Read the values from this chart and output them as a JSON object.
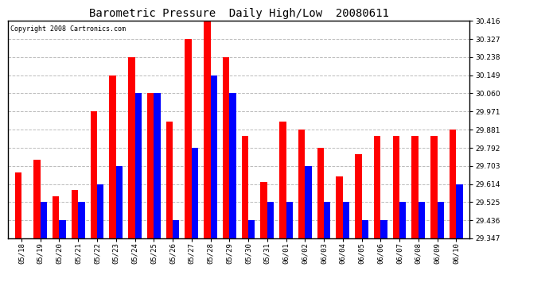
{
  "title": "Barometric Pressure  Daily High/Low  20080611",
  "copyright": "Copyright 2008 Cartronics.com",
  "dates": [
    "05/18",
    "05/19",
    "05/20",
    "05/21",
    "05/22",
    "05/23",
    "05/24",
    "05/25",
    "05/26",
    "05/27",
    "05/28",
    "05/29",
    "05/30",
    "05/31",
    "06/01",
    "06/02",
    "06/03",
    "06/04",
    "06/05",
    "06/06",
    "06/07",
    "06/08",
    "06/09",
    "06/10"
  ],
  "highs": [
    29.673,
    29.733,
    29.554,
    29.584,
    29.97,
    30.149,
    30.238,
    30.06,
    29.921,
    30.327,
    30.416,
    30.238,
    29.851,
    29.624,
    29.921,
    29.881,
    29.792,
    29.653,
    29.762,
    29.851,
    29.851,
    29.851,
    29.851,
    29.881
  ],
  "lows": [
    29.347,
    29.525,
    29.436,
    29.525,
    29.614,
    29.703,
    30.06,
    30.06,
    29.436,
    29.792,
    30.149,
    30.06,
    29.436,
    29.525,
    29.525,
    29.703,
    29.525,
    29.525,
    29.436,
    29.436,
    29.525,
    29.525,
    29.525,
    29.614
  ],
  "ylim_min": 29.347,
  "ylim_max": 30.416,
  "yticks": [
    29.347,
    29.436,
    29.525,
    29.614,
    29.703,
    29.792,
    29.881,
    29.971,
    30.06,
    30.149,
    30.238,
    30.327,
    30.416
  ],
  "high_color": "#ff0000",
  "low_color": "#0000ff",
  "bg_color": "#ffffff",
  "grid_color": "#bbbbbb",
  "bar_width": 0.35,
  "title_fontsize": 10,
  "copyright_fontsize": 6,
  "tick_fontsize": 6.5
}
